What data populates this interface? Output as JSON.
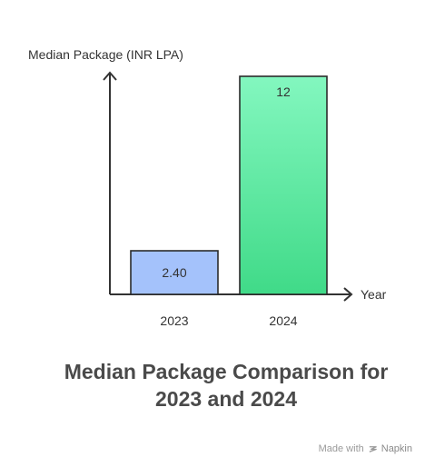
{
  "chart_data": {
    "type": "bar",
    "categories": [
      "2023",
      "2024"
    ],
    "values": [
      2.4,
      12
    ],
    "value_labels": [
      "2.40",
      "12"
    ],
    "title": "Median Package Comparison for 2023 and 2024",
    "title_lines": [
      "Median Package Comparison for",
      "2023 and 2024"
    ],
    "xlabel": "Year",
    "ylabel": "Median Package (INR LPA)",
    "ylim": [
      0,
      12
    ],
    "grid": false,
    "legend": "none",
    "colors": {
      "bar_2023_fill": "#a4c2fb",
      "bar_2023_stroke": "#2b2b2b",
      "bar_2024_fill_top": "#83f7bf",
      "bar_2024_fill_bottom": "#40da88",
      "bar_2024_stroke": "#2b2b2b",
      "axis": "#333333",
      "text": "#333333",
      "title": "#4a4a4a"
    }
  },
  "footer": {
    "made_with": "Made with",
    "brand": "Napkin",
    "icon": "napkin-logo-icon"
  }
}
